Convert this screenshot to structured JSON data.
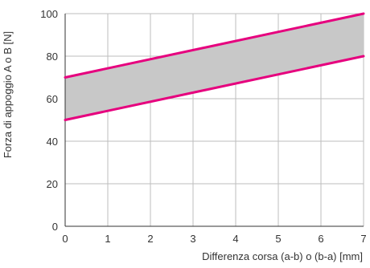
{
  "chart_data": {
    "type": "area",
    "title": "",
    "xlabel": "Differenza corsa (a-b) o (b-a) [mm]",
    "ylabel": "Forza di appoggio A o B [N]",
    "xlim": [
      0,
      7
    ],
    "ylim": [
      0,
      100
    ],
    "x_ticks": [
      0,
      1,
      2,
      3,
      4,
      5,
      6,
      7
    ],
    "y_ticks": [
      0,
      20,
      40,
      60,
      80,
      100
    ],
    "x_tick_labels": [
      "0",
      "1",
      "2",
      "3",
      "4",
      "5",
      "6",
      "7"
    ],
    "y_tick_labels": [
      "0",
      "20",
      "40",
      "60",
      "80",
      "100"
    ],
    "grid": true,
    "legend": "none",
    "series": [
      {
        "x": [
          0,
          7
        ],
        "values": [
          50,
          80
        ]
      },
      {
        "x": [
          0,
          7
        ],
        "values": [
          70,
          100
        ]
      }
    ],
    "band_between_series": true,
    "colors": {
      "line": "#e6007e",
      "band_fill": "#c8c8c8",
      "grid": "#bdbdbd",
      "axis": "#333333",
      "text": "#333333"
    }
  }
}
